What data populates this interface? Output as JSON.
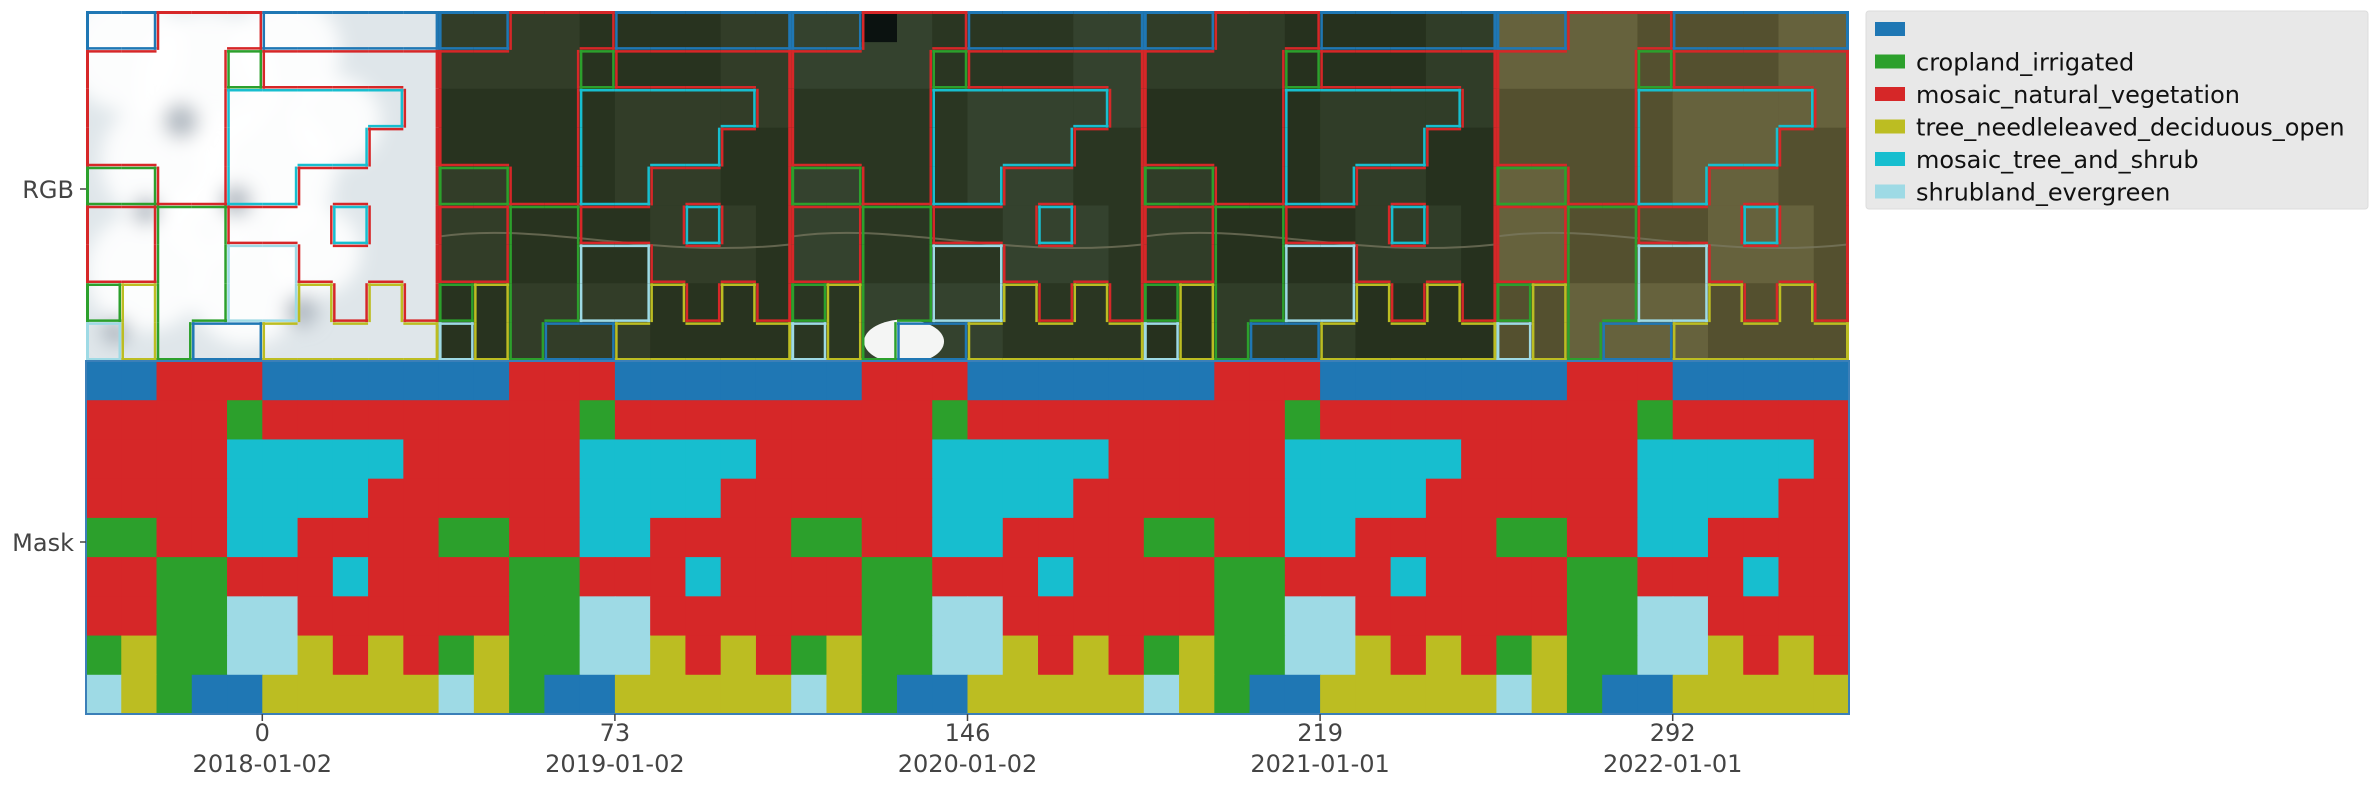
{
  "figure": {
    "rows": [
      {
        "label": "RGB"
      },
      {
        "label": "Mask"
      }
    ],
    "x_ticks": [
      {
        "value": "0",
        "date": "2018-01-02"
      },
      {
        "value": "73",
        "date": "2019-01-02"
      },
      {
        "value": "146",
        "date": "2020-01-02"
      },
      {
        "value": "219",
        "date": "2021-01-01"
      },
      {
        "value": "292",
        "date": "2022-01-01"
      }
    ],
    "n_timesteps": 5,
    "legend": [
      {
        "label": "",
        "color": "#1f77b4"
      },
      {
        "label": "cropland_irrigated",
        "color": "#2ca02c"
      },
      {
        "label": "mosaic_natural_vegetation",
        "color": "#d62728"
      },
      {
        "label": "tree_needleleaved_deciduous_open",
        "color": "#bcbd22"
      },
      {
        "label": "mosaic_tree_and_shrub",
        "color": "#17becf"
      },
      {
        "label": "shrubland_evergreen",
        "color": "#9edae5"
      }
    ],
    "mask_grid": [
      "0022200000",
      "2222122222",
      "2222444442",
      "2222444422",
      "1122442222",
      "2211222422",
      "2211552222",
      "1311553232",
      "5310033333"
    ]
  }
}
